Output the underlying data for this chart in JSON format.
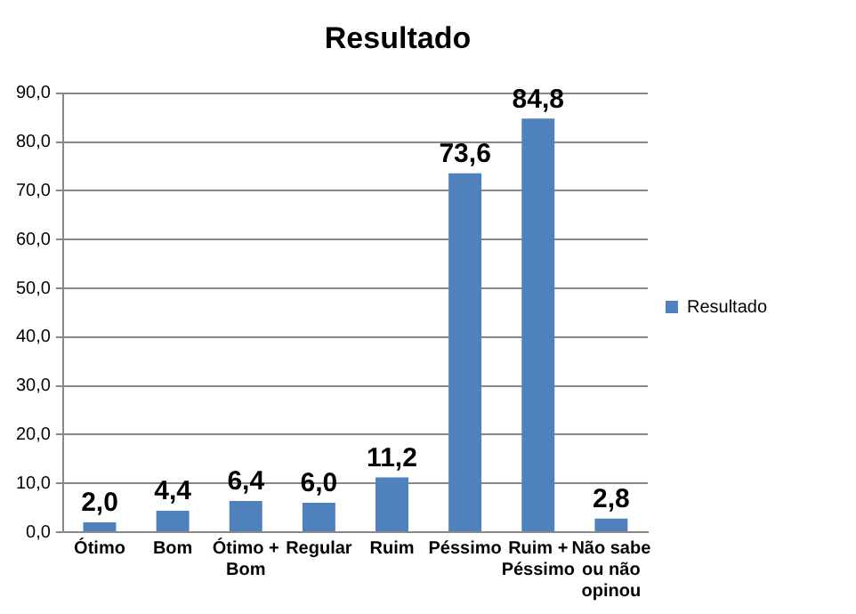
{
  "chart_data": {
    "type": "bar",
    "title": "Resultado",
    "categories": [
      "Ótimo",
      "Bom",
      "Ótimo + Bom",
      "Regular",
      "Ruim",
      "Péssimo",
      "Ruim + Péssimo",
      "Não sabe ou não opinou"
    ],
    "series": [
      {
        "name": "Resultado",
        "color": "#4f81bd",
        "values": [
          2.0,
          4.4,
          6.4,
          6.0,
          11.2,
          73.6,
          84.8,
          2.8
        ],
        "value_labels": [
          "2,0",
          "4,4",
          "6,4",
          "6,0",
          "11,2",
          "73,6",
          "84,8",
          "2,8"
        ]
      }
    ],
    "ylim": [
      0,
      90
    ],
    "yticks": [
      {
        "value": 0,
        "label": "0,0"
      },
      {
        "value": 10,
        "label": "10,0"
      },
      {
        "value": 20,
        "label": "20,0"
      },
      {
        "value": 30,
        "label": "30,0"
      },
      {
        "value": 40,
        "label": "40,0"
      },
      {
        "value": 50,
        "label": "50,0"
      },
      {
        "value": 60,
        "label": "60,0"
      },
      {
        "value": 70,
        "label": "70,0"
      },
      {
        "value": 80,
        "label": "80,0"
      },
      {
        "value": 90,
        "label": "90,0"
      }
    ],
    "grid": "y",
    "legend": "right"
  }
}
